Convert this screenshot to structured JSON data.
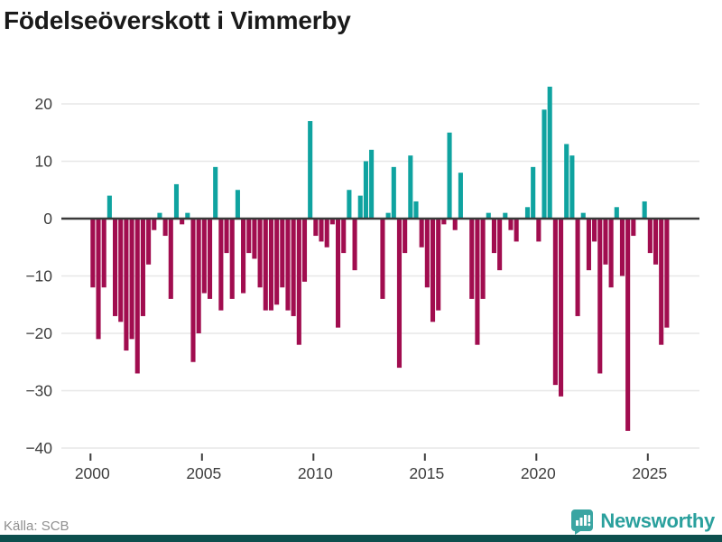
{
  "title": "Födelseöverskott i Vimmerby",
  "source": "Källa: SCB",
  "brand": {
    "name": "Newsworthy"
  },
  "colors": {
    "positive": "#0fa3a0",
    "negative": "#a10d4f",
    "zero_line": "#3a3a3a",
    "grid": "#e7e7e7",
    "tick": "#3d3d3d",
    "tick_label": "#3d3d3d",
    "title": "#1a1a1a",
    "source_text": "#8f8f8f",
    "brand_teal": "#2aa09d",
    "footer_strip": "#0d4f4e",
    "background": "#ffffff"
  },
  "chart_data": {
    "type": "bar",
    "title": "Födelseöverskott i Vimmerby",
    "x_start": "2000-Q1",
    "frequency": "quarterly",
    "x_tick_labels": [
      "2000",
      "2005",
      "2010",
      "2015",
      "2020",
      "2025"
    ],
    "y_tick_labels": [
      "20",
      "10",
      "0",
      "−10",
      "−20",
      "−30",
      "−40"
    ],
    "y_ticks": [
      20,
      10,
      0,
      -10,
      -20,
      -30,
      -40
    ],
    "ylim": [
      -40,
      23
    ],
    "grid": true,
    "legend": false,
    "values": [
      -12,
      -21,
      -12,
      4,
      -17,
      -18,
      -23,
      -21,
      -27,
      -17,
      -8,
      -2,
      1,
      -3,
      -14,
      6,
      -1,
      1,
      -25,
      -20,
      -13,
      -14,
      9,
      -16,
      -6,
      -14,
      5,
      -13,
      -6,
      -7,
      -12,
      -16,
      -16,
      -15,
      -12,
      -16,
      -17,
      -22,
      -11,
      17,
      -3,
      -4,
      -5,
      -1,
      -19,
      -6,
      5,
      -9,
      4,
      10,
      12,
      0,
      -14,
      1,
      9,
      -26,
      -6,
      11,
      3,
      -5,
      -12,
      -18,
      -16,
      -1,
      15,
      -2,
      8,
      0,
      -14,
      -22,
      -14,
      1,
      -6,
      -9,
      1,
      -2,
      -4,
      0,
      2,
      9,
      -4,
      19,
      23,
      -29,
      -31,
      13,
      11,
      -17,
      1,
      -9,
      -4,
      -27,
      -8,
      -12,
      2,
      -10,
      -37,
      -3,
      0,
      3,
      -6,
      -8,
      -22,
      -19
    ]
  }
}
